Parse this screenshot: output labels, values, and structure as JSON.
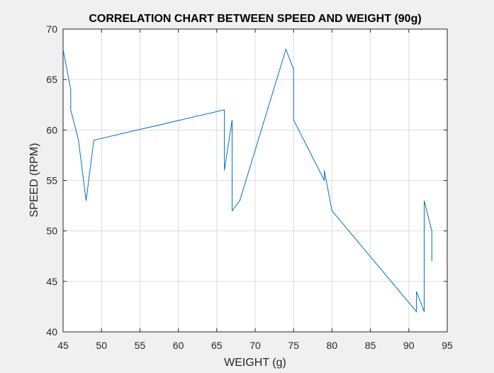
{
  "chart_data": {
    "type": "line",
    "title": "CORRELATION CHART BETWEEN SPEED AND WEIGHT (90g)",
    "xlabel": "WEIGHT (g)",
    "ylabel": "SPEED (RPM)",
    "xlim": [
      45,
      95
    ],
    "ylim": [
      40,
      70
    ],
    "xticks": [
      "45",
      "50",
      "55",
      "60",
      "65",
      "70",
      "75",
      "80",
      "85",
      "90",
      "95"
    ],
    "yticks": [
      "40",
      "45",
      "50",
      "55",
      "60",
      "65",
      "70"
    ],
    "grid": true,
    "color": "#0072bd",
    "series": [
      {
        "x": [
          45,
          46,
          46,
          47,
          48,
          49,
          66,
          66,
          67,
          67,
          68,
          74,
          75,
          75,
          79,
          79,
          80,
          91,
          91,
          92,
          92,
          93,
          93
        ],
        "y": [
          68,
          64,
          62,
          59,
          53,
          59,
          62,
          56,
          61,
          52,
          53,
          68,
          66,
          61,
          55,
          56,
          52,
          42,
          44,
          42,
          53,
          50,
          47
        ]
      }
    ]
  }
}
